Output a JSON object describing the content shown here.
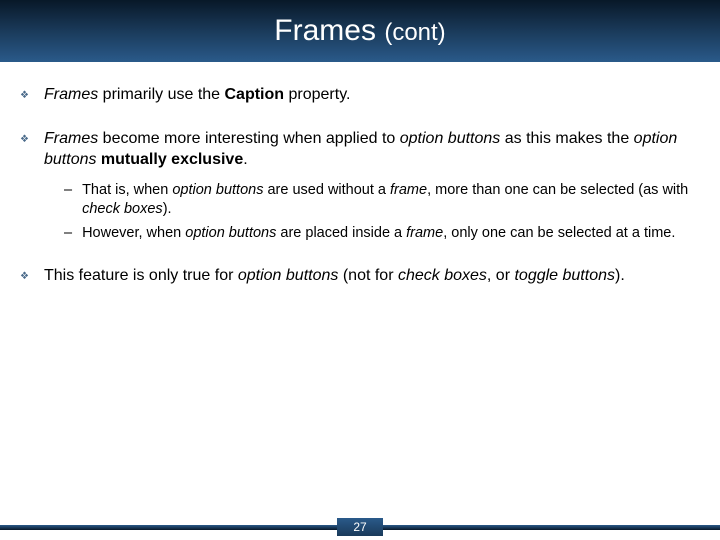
{
  "header": {
    "title_main": "Frames",
    "title_sub": "(cont)"
  },
  "bullets": {
    "b1_pre": "Frames",
    "b1_mid": " primarily use the ",
    "b1_bold": "Caption",
    "b1_post": " property.",
    "b2_w1": "Frames",
    "b2_t1": " become more interesting when applied to ",
    "b2_w2": "option buttons",
    "b2_t2": " as this makes the ",
    "b2_w3": "option buttons",
    "b2_bold": " mutually exclusive",
    "b2_end": ".",
    "s1_t1": "That is, when ",
    "s1_w1": "option buttons",
    "s1_t2": " are used without a ",
    "s1_w2": "frame",
    "s1_t3": ", more than one can be selected (as with ",
    "s1_w3": "check boxes",
    "s1_t4": ").",
    "s2_t1": "However, when ",
    "s2_w1": "option buttons",
    "s2_t2": " are placed inside a ",
    "s2_w2": "frame",
    "s2_t3": ", only one can be selected at a time.",
    "b3_t1": "This feature is only true for ",
    "b3_w1": "option buttons",
    "b3_t2": " (not for ",
    "b3_w2": "check boxes",
    "b3_t3": ", or ",
    "b3_w3": "toggle buttons",
    "b3_t4": ")."
  },
  "footer": {
    "page": "27"
  },
  "glyphs": {
    "diamond": "❖",
    "dash": "–"
  }
}
